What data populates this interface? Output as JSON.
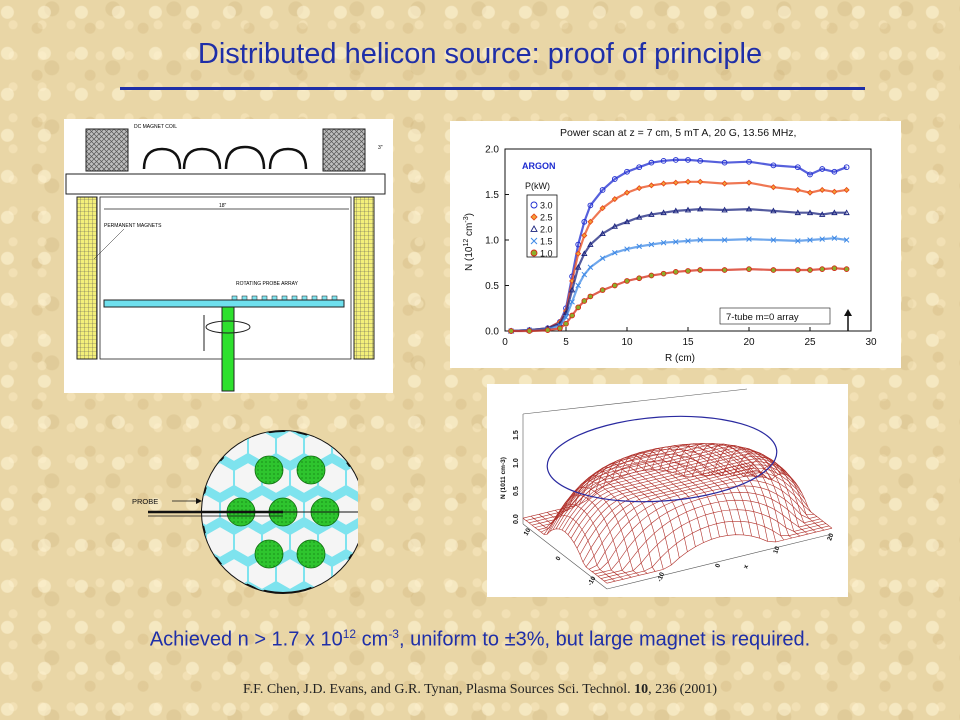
{
  "slide": {
    "title": "Distributed helicon source: proof of principle",
    "caption_parts": [
      "Achieved n > 1.7 x 10",
      "12",
      " cm",
      "-3",
      ", uniform to ",
      "±",
      "3%, but large magnet is required."
    ],
    "citation_prefix": "F.F. Chen, J.D. Evans, and G.R. Tynan, Plasma Sources Sci. Technol. ",
    "citation_volume": "10",
    "citation_suffix": ", 236 (2001)"
  },
  "schematic": {
    "label_magnet_coil": "DC MAGNET COIL",
    "label_dim_3": "3\"",
    "label_dim_18": "18\"",
    "label_permanent_magnets": "PERMANENT MAGNETS",
    "label_probe_array": "ROTATING PROBE ARRAY"
  },
  "tube_layout": {
    "label_probe": "PROBE"
  },
  "surface_plot": {
    "z_axis_label": "N (1011 cm-3)",
    "z_ticks": [
      "0.0",
      "0.5",
      "1.0",
      "1.5"
    ],
    "x_ticks": [
      "10",
      "0",
      "-10"
    ],
    "y_ticks": [
      "-10",
      "0",
      "10",
      "20"
    ],
    "y_axis_label": "x"
  },
  "colors": {
    "title": "#1f2fa8",
    "series_3_0": "#1d2bd0",
    "series_2_5": "#e9491a",
    "series_2_0": "#1a237e",
    "series_1_5": "#3f8ae6",
    "series_1_0": "#d42a16",
    "tube_fill": "#2ec42e",
    "chamber_fill": "#7ee3ee"
  },
  "chart_data": {
    "type": "scatter",
    "title": "Power scan at z = 7 cm, 5 mT A, 20 G, 13.56 MHz,",
    "xlabel": "R (cm)",
    "ylabel_parts": [
      "N (10",
      "12",
      " cm",
      "-3",
      ")"
    ],
    "xlim": [
      0,
      30
    ],
    "ylim": [
      0,
      2
    ],
    "x_ticks": [
      "0",
      "5",
      "10",
      "15",
      "20",
      "25",
      "30"
    ],
    "y_ticks": [
      "0.0",
      "0.5",
      "1.0",
      "1.5",
      "2.0"
    ],
    "gas_label": "ARGON",
    "legend_title": "P(kW)",
    "annotation": "7-tube m=0 array",
    "legend_placement": "top-left",
    "grid": false,
    "series": [
      {
        "name": "3.0",
        "marker": "circle",
        "color": "#1d2bd0",
        "x": [
          0.5,
          2,
          3.5,
          4.5,
          5,
          5.5,
          6,
          6.5,
          7,
          8,
          9,
          10,
          11,
          12,
          13,
          14,
          15,
          16,
          18,
          20,
          22,
          24,
          25,
          26,
          27,
          28
        ],
        "y": [
          0.0,
          0.01,
          0.03,
          0.1,
          0.25,
          0.6,
          0.95,
          1.2,
          1.38,
          1.55,
          1.67,
          1.75,
          1.8,
          1.85,
          1.87,
          1.88,
          1.88,
          1.87,
          1.85,
          1.86,
          1.82,
          1.8,
          1.72,
          1.78,
          1.75,
          1.8
        ]
      },
      {
        "name": "2.5",
        "marker": "diamond",
        "color": "#e9491a",
        "x": [
          0.5,
          2,
          3.5,
          4.5,
          5,
          5.5,
          6,
          6.5,
          7,
          8,
          9,
          10,
          11,
          12,
          13,
          14,
          15,
          16,
          18,
          20,
          22,
          24,
          25,
          26,
          27,
          28
        ],
        "y": [
          0.0,
          0.01,
          0.03,
          0.1,
          0.22,
          0.55,
          0.85,
          1.05,
          1.2,
          1.35,
          1.45,
          1.52,
          1.57,
          1.6,
          1.62,
          1.63,
          1.64,
          1.64,
          1.62,
          1.63,
          1.58,
          1.55,
          1.52,
          1.55,
          1.53,
          1.55
        ]
      },
      {
        "name": "2.0",
        "marker": "triangle",
        "color": "#1a237e",
        "x": [
          0.5,
          2,
          3.5,
          4.5,
          5,
          5.5,
          6,
          6.5,
          7,
          8,
          9,
          10,
          11,
          12,
          13,
          14,
          15,
          16,
          18,
          20,
          22,
          24,
          25,
          26,
          27,
          28
        ],
        "y": [
          0.0,
          0.01,
          0.03,
          0.08,
          0.2,
          0.45,
          0.7,
          0.85,
          0.95,
          1.07,
          1.15,
          1.2,
          1.25,
          1.28,
          1.3,
          1.32,
          1.33,
          1.34,
          1.33,
          1.34,
          1.32,
          1.3,
          1.3,
          1.28,
          1.3,
          1.3
        ]
      },
      {
        "name": "1.5",
        "marker": "x",
        "color": "#3f8ae6",
        "x": [
          0.5,
          2,
          3.5,
          4.5,
          5,
          5.5,
          6,
          6.5,
          7,
          8,
          9,
          10,
          11,
          12,
          13,
          14,
          15,
          16,
          18,
          20,
          22,
          24,
          25,
          26,
          27,
          28
        ],
        "y": [
          0.0,
          0.01,
          0.02,
          0.06,
          0.15,
          0.32,
          0.5,
          0.62,
          0.7,
          0.8,
          0.86,
          0.9,
          0.93,
          0.95,
          0.97,
          0.98,
          0.99,
          1.0,
          1.0,
          1.01,
          1.0,
          0.99,
          1.0,
          1.01,
          1.02,
          1.0
        ]
      },
      {
        "name": "1.0",
        "marker": "circle-filled",
        "color": "#d42a16",
        "x": [
          0.5,
          2,
          3.5,
          4.5,
          5,
          5.5,
          6,
          6.5,
          7,
          8,
          9,
          10,
          11,
          12,
          13,
          14,
          15,
          16,
          18,
          20,
          22,
          24,
          25,
          26,
          27,
          28
        ],
        "y": [
          0.0,
          0.0,
          0.01,
          0.03,
          0.08,
          0.17,
          0.26,
          0.33,
          0.38,
          0.45,
          0.5,
          0.55,
          0.58,
          0.61,
          0.63,
          0.65,
          0.66,
          0.67,
          0.67,
          0.68,
          0.67,
          0.67,
          0.67,
          0.68,
          0.69,
          0.68
        ]
      }
    ]
  }
}
